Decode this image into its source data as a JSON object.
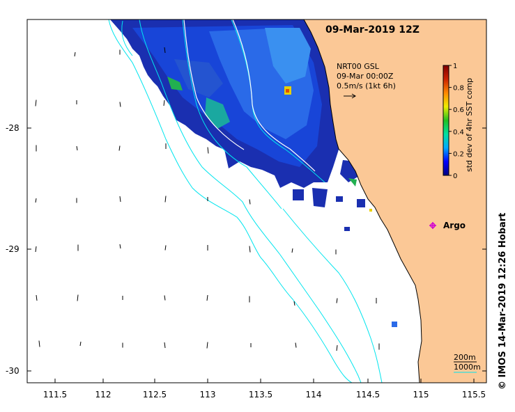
{
  "map": {
    "title": "09-Mar-2019 12Z",
    "credit": "IMOS 14-Mar-2019 12:26 Hobart",
    "copyright_symbol": "©",
    "x_ticks": [
      "111.5",
      "112",
      "112.5",
      "113",
      "113.5",
      "114",
      "114.5",
      "115",
      "115.5"
    ],
    "y_ticks": [
      "-28",
      "-29",
      "-30"
    ],
    "colors": {
      "land": "#fbc896",
      "isobath": "#00e5ee",
      "argo": "#d000d0"
    }
  },
  "velocity_legend": {
    "line1": "NRT00 GSL",
    "line2": "09-Mar 00:00Z",
    "line3": "0.5m/s (1kt 6h)"
  },
  "colorbar": {
    "title": "std dev of 4hr SST comp",
    "ticks": [
      "1",
      "0.8",
      "0.6",
      "0.4",
      "0.2",
      "0"
    ],
    "stops": [
      "#00007f",
      "#0000ff",
      "#00aaff",
      "#00e0a0",
      "#22c022",
      "#eeee00",
      "#ff8800",
      "#cc2200",
      "#800000"
    ]
  },
  "argo": {
    "label": "Argo"
  },
  "depth_legend": {
    "label_200": "200m",
    "label_1000": "1000m"
  }
}
